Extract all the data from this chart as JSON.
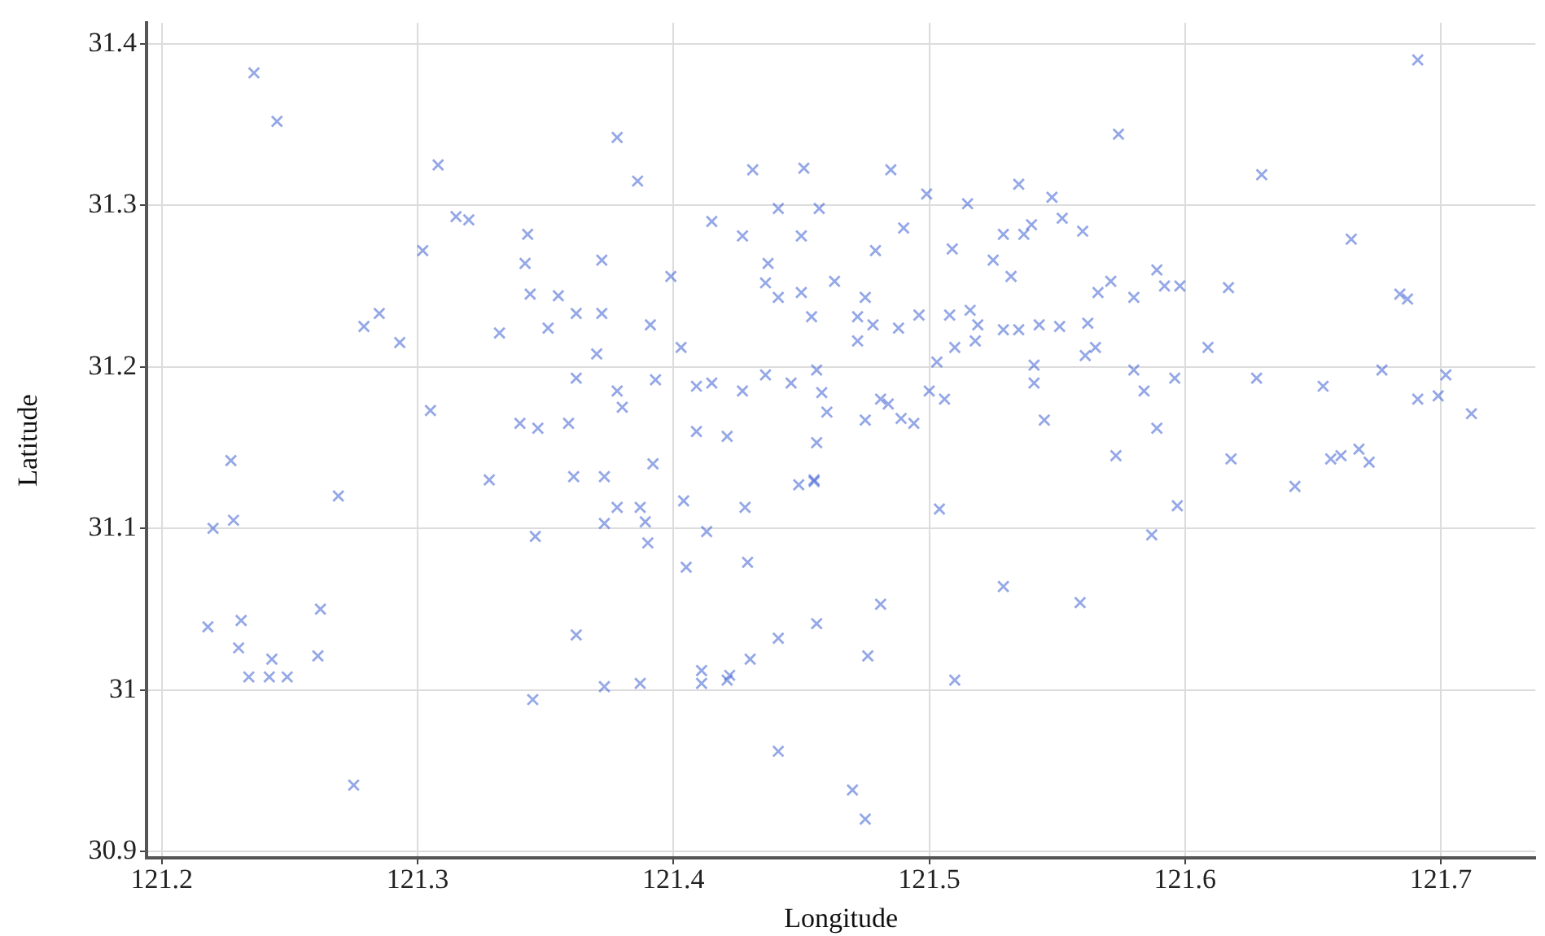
{
  "chart_data": {
    "type": "scatter",
    "xlabel": "Longitude",
    "ylabel": "Latitude",
    "xlim": [
      121.194,
      121.737
    ],
    "ylim": [
      30.896,
      31.413
    ],
    "xticks": [
      121.2,
      121.3,
      121.4,
      121.5,
      121.6,
      121.7
    ],
    "yticks": [
      30.9,
      31.0,
      31.1,
      31.2,
      31.3,
      31.4
    ],
    "grid": true,
    "marker": "cross",
    "series": [
      {
        "color": "#3c5fd4",
        "x": [
          121.236,
          121.245,
          121.308,
          121.302,
          121.315,
          121.32,
          121.279,
          121.285,
          121.293,
          121.305,
          121.227,
          121.332,
          121.34,
          121.328,
          121.228,
          121.22,
          121.269,
          121.218,
          121.231,
          121.23,
          121.234,
          121.243,
          121.242,
          121.249,
          121.261,
          121.262,
          121.275,
          121.345,
          121.378,
          121.386,
          121.343,
          121.342,
          121.344,
          121.355,
          121.372,
          121.362,
          121.372,
          121.351,
          121.37,
          121.391,
          121.403,
          121.399,
          121.415,
          121.431,
          121.451,
          121.441,
          121.457,
          121.427,
          121.45,
          121.437,
          121.485,
          121.499,
          121.515,
          121.535,
          121.509,
          121.529,
          121.537,
          121.525,
          121.532,
          121.479,
          121.49,
          121.436,
          121.441,
          121.45,
          121.454,
          121.463,
          121.472,
          121.475,
          121.472,
          121.478,
          121.488,
          121.496,
          121.508,
          121.516,
          121.519,
          121.529,
          121.535,
          121.518,
          121.362,
          121.378,
          121.38,
          121.393,
          121.409,
          121.415,
          121.427,
          121.436,
          121.446,
          121.456,
          121.458,
          121.46,
          121.475,
          121.484,
          121.489,
          121.494,
          121.481,
          121.5,
          121.506,
          121.503,
          121.51,
          121.409,
          121.421,
          121.359,
          121.347,
          121.361,
          121.373,
          121.392,
          121.456,
          121.455,
          121.373,
          121.378,
          121.387,
          121.389,
          121.39,
          121.346,
          121.404,
          121.413,
          121.405,
          121.428,
          121.429,
          121.449,
          121.455,
          121.504,
          121.529,
          121.362,
          121.373,
          121.387,
          121.411,
          121.411,
          121.421,
          121.422,
          121.43,
          121.441,
          121.456,
          121.481,
          121.476,
          121.51,
          121.441,
          121.47,
          121.475,
          121.691,
          121.574,
          121.63,
          121.548,
          121.54,
          121.552,
          121.56,
          121.665,
          121.566,
          121.571,
          121.58,
          121.589,
          121.592,
          121.598,
          121.617,
          121.684,
          121.687,
          121.609,
          121.543,
          121.551,
          121.562,
          121.565,
          121.561,
          121.541,
          121.541,
          121.58,
          121.584,
          121.596,
          121.628,
          121.654,
          121.677,
          121.702,
          121.699,
          121.691,
          121.712,
          121.545,
          121.589,
          121.573,
          121.618,
          121.657,
          121.661,
          121.668,
          121.672,
          121.643,
          121.597,
          121.587,
          121.559
        ],
        "values": [
          31.382,
          31.352,
          31.325,
          31.272,
          31.293,
          31.291,
          31.225,
          31.233,
          31.215,
          31.173,
          31.142,
          31.221,
          31.165,
          31.13,
          31.105,
          31.1,
          31.12,
          31.039,
          31.043,
          31.026,
          31.008,
          31.019,
          31.008,
          31.008,
          31.021,
          31.05,
          30.941,
          30.994,
          31.342,
          31.315,
          31.282,
          31.264,
          31.245,
          31.244,
          31.266,
          31.233,
          31.233,
          31.224,
          31.208,
          31.226,
          31.212,
          31.256,
          31.29,
          31.322,
          31.323,
          31.298,
          31.298,
          31.281,
          31.281,
          31.264,
          31.322,
          31.307,
          31.301,
          31.313,
          31.273,
          31.282,
          31.282,
          31.266,
          31.256,
          31.272,
          31.286,
          31.252,
          31.243,
          31.246,
          31.231,
          31.253,
          31.231,
          31.243,
          31.216,
          31.226,
          31.224,
          31.232,
          31.232,
          31.235,
          31.226,
          31.223,
          31.223,
          31.216,
          31.193,
          31.185,
          31.175,
          31.192,
          31.188,
          31.19,
          31.185,
          31.195,
          31.19,
          31.198,
          31.184,
          31.172,
          31.167,
          31.177,
          31.168,
          31.165,
          31.18,
          31.185,
          31.18,
          31.203,
          31.212,
          31.16,
          31.157,
          31.165,
          31.162,
          31.132,
          31.132,
          31.14,
          31.153,
          31.13,
          31.103,
          31.113,
          31.113,
          31.104,
          31.091,
          31.095,
          31.117,
          31.098,
          31.076,
          31.113,
          31.079,
          31.127,
          31.129,
          31.112,
          31.064,
          31.034,
          31.002,
          31.004,
          31.012,
          31.004,
          31.006,
          31.009,
          31.019,
          31.032,
          31.041,
          31.053,
          31.021,
          31.006,
          30.962,
          30.938,
          30.92,
          31.39,
          31.344,
          31.319,
          31.305,
          31.288,
          31.292,
          31.284,
          31.279,
          31.246,
          31.253,
          31.243,
          31.26,
          31.25,
          31.25,
          31.249,
          31.245,
          31.242,
          31.212,
          31.226,
          31.225,
          31.227,
          31.212,
          31.207,
          31.201,
          31.19,
          31.198,
          31.185,
          31.193,
          31.193,
          31.188,
          31.198,
          31.195,
          31.182,
          31.18,
          31.171,
          31.167,
          31.162,
          31.145,
          31.143,
          31.143,
          31.145,
          31.149,
          31.141,
          31.126,
          31.114,
          31.096,
          31.054
        ]
      }
    ]
  }
}
